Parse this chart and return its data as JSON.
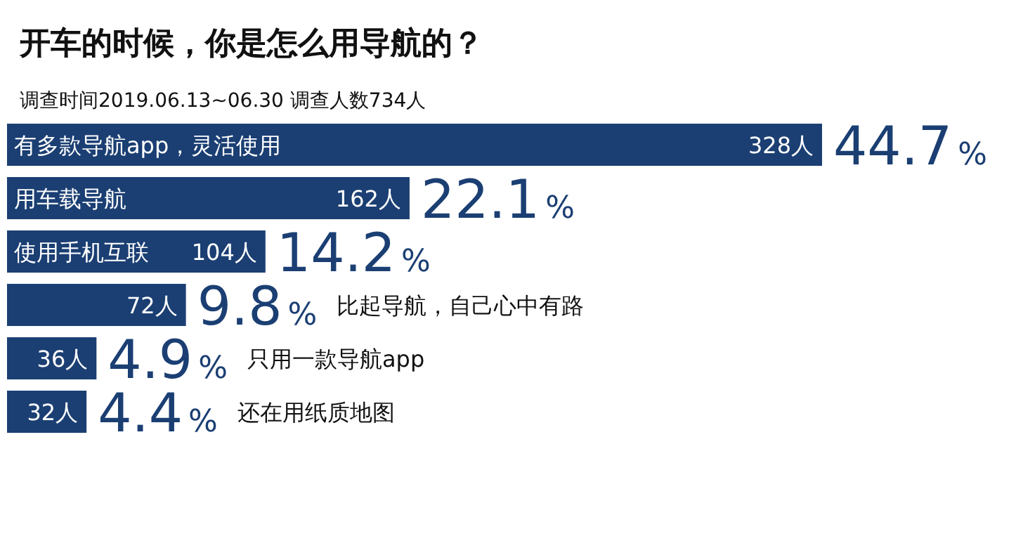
{
  "chart_data": {
    "type": "bar",
    "orientation": "horizontal",
    "title": "开车的时候，你是怎么用导航的？",
    "subtitle": "调查时间2019.06.13~06.30  调查人数734人",
    "categories": [
      "有多款导航app，灵活使用",
      "用车载导航",
      "使用手机互联",
      "比起导航，自己心中有路",
      "只用一款导航app",
      "还在用纸质地图"
    ],
    "series": [
      {
        "color": "#1b3f73",
        "values": [
          328,
          162,
          104,
          72,
          36,
          32
        ],
        "value_labels": [
          "328人",
          "162人",
          "104人",
          "72人",
          "36人",
          "32人"
        ]
      }
    ],
    "annotations": [
      {
        "text": "44.7%",
        "x": 328,
        "y": "有多款导航app，灵活使用"
      },
      {
        "text": "22.1%",
        "x": 162,
        "y": "用车载导航"
      },
      {
        "text": "14.2%",
        "x": 104,
        "y": "使用手机互联"
      },
      {
        "text": "9.8%",
        "x": 72,
        "y": "比起导航，自己心中有路"
      },
      {
        "text": "4.9%",
        "x": 36,
        "y": "只用一款导航app"
      },
      {
        "text": "4.4%",
        "x": 32,
        "y": "还在用纸质地图"
      }
    ]
  }
}
